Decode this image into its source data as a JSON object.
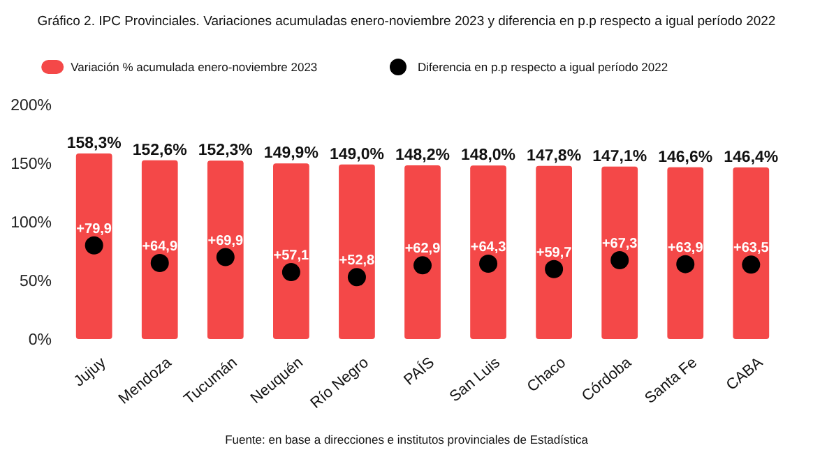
{
  "chart_data": {
    "type": "bar",
    "title": "Gráfico 2. IPC Provinciales. Variaciones acumuladas enero-noviembre 2023 y diferencia en p.p respecto a igual período 2022",
    "categories": [
      "Jujuy",
      "Mendoza",
      "Tucumán",
      "Neuquén",
      "Río Negro",
      "PAÍS",
      "San Luis",
      "Chaco",
      "Córdoba",
      "Santa Fe",
      "CABA"
    ],
    "series": [
      {
        "name": "Variación % acumulada enero-noviembre 2023",
        "color": "#f44848",
        "values": [
          158.3,
          152.6,
          152.3,
          149.9,
          149.0,
          148.2,
          148.0,
          147.8,
          147.1,
          146.6,
          146.4
        ],
        "value_labels": [
          "158,3%",
          "152,6%",
          "152,3%",
          "149,9%",
          "149,0%",
          "148,2%",
          "148,0%",
          "147,8%",
          "147,1%",
          "146,6%",
          "146,4%"
        ]
      },
      {
        "name": "Diferencia en p.p respecto a igual período 2022",
        "type": "scatter",
        "color": "#000000",
        "values": [
          79.9,
          64.9,
          69.9,
          57.1,
          52.8,
          62.9,
          64.3,
          59.7,
          67.3,
          63.9,
          63.5
        ],
        "value_labels": [
          "+79,9",
          "+64,9",
          "+69,9",
          "+57,1",
          "+52,8",
          "+62,9",
          "+64,3",
          "+59,7",
          "+67,3",
          "+63,9",
          "+63,5"
        ]
      }
    ],
    "ylim": [
      0,
      200
    ],
    "yticks": [
      {
        "value": 0,
        "label": "0%"
      },
      {
        "value": 50,
        "label": "50%"
      },
      {
        "value": 100,
        "label": "100%"
      },
      {
        "value": 150,
        "label": "150%"
      },
      {
        "value": 200,
        "label": "200%"
      }
    ],
    "tick_labels": "xy",
    "marker": "circle",
    "legend": "top",
    "grid": false,
    "annotations": [
      "Fuente: en base a direcciones e institutos provinciales de Estadística"
    ]
  }
}
